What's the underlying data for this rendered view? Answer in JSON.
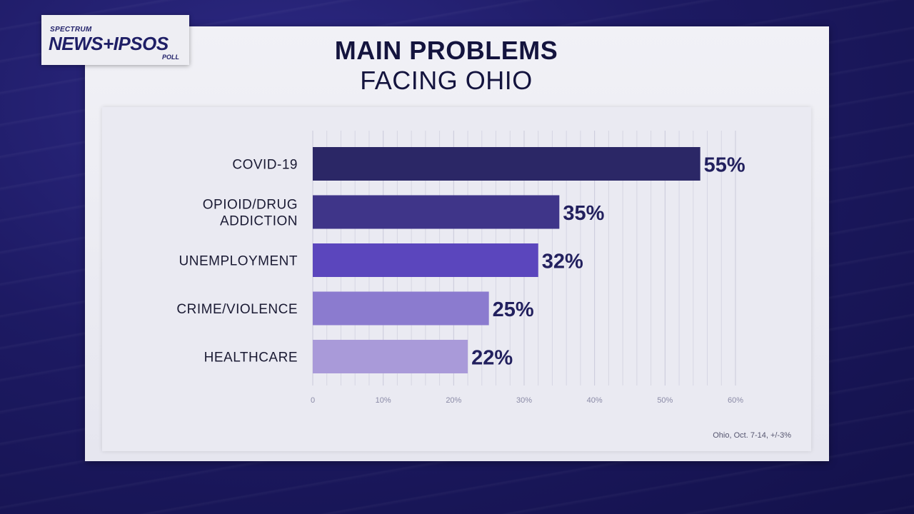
{
  "logo": {
    "top": "SPECTRUM",
    "main": "NEWS+IPSOS",
    "bottom": "POLL"
  },
  "title": {
    "line1": "MAIN PROBLEMS",
    "line2": "FACING OHIO"
  },
  "footnote": "Ohio, Oct. 7-14, +/-3%",
  "chart_data": {
    "type": "bar",
    "orientation": "horizontal",
    "categories": [
      [
        "COVID-19"
      ],
      [
        "OPIOID/DRUG",
        "ADDICTION"
      ],
      [
        "UNEMPLOYMENT"
      ],
      [
        "CRIME/VIOLENCE"
      ],
      [
        "HEALTHCARE"
      ]
    ],
    "values": [
      55,
      35,
      32,
      25,
      22
    ],
    "value_labels": [
      "55%",
      "35%",
      "32%",
      "25%",
      "22%"
    ],
    "bar_colors": [
      "#2b2766",
      "#3f3589",
      "#5b46bd",
      "#8b7bcf",
      "#a99ad9"
    ],
    "xlim": [
      0,
      60
    ],
    "xticks": [
      0,
      10,
      20,
      30,
      40,
      50,
      60
    ],
    "xtick_labels": [
      "0",
      "10%",
      "20%",
      "30%",
      "40%",
      "50%",
      "60%"
    ],
    "grid": true
  }
}
